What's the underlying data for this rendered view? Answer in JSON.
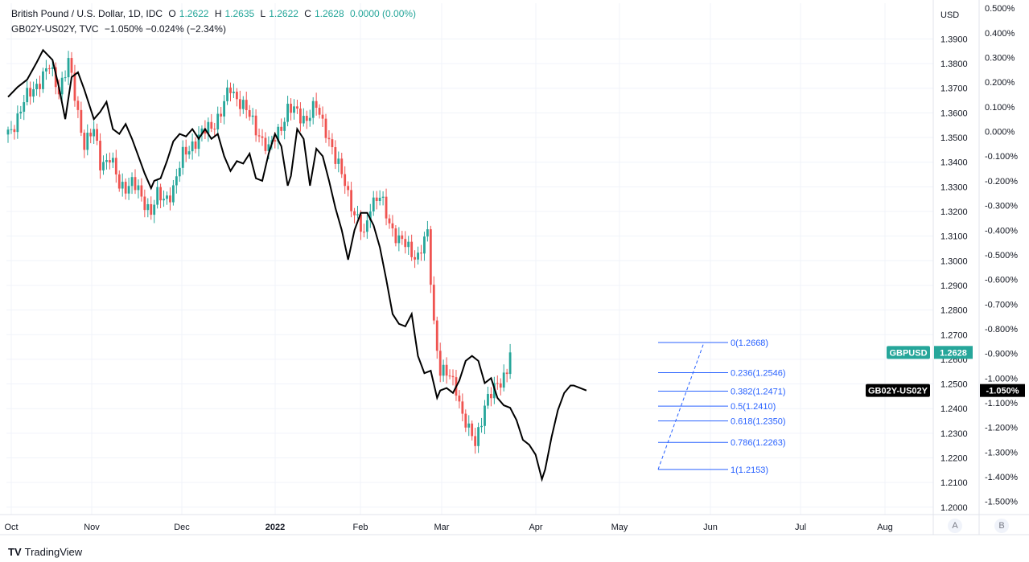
{
  "legend": {
    "symbol": "British Pound / U.S. Dollar, 1D, IDC",
    "o_label": "O",
    "o": "1.2622",
    "h_label": "H",
    "h": "1.2635",
    "l_label": "L",
    "l": "1.2622",
    "c_label": "C",
    "c": "1.2628",
    "change": "0.0000 (0.00%)",
    "overlay_symbol": "GB02Y-US02Y, TVC",
    "overlay_values": "−1.050%  −0.024% (−2.34%)"
  },
  "brand": {
    "logo": "TV",
    "name": "TradingView"
  },
  "buttons": {
    "a": "A",
    "b": "B"
  },
  "colors": {
    "up": "#26a69a",
    "down": "#ef5350",
    "overlay": "#000000",
    "fib": "#2962ff",
    "tag_gbp": "#26a69a",
    "tag_spread": "#000000"
  },
  "chart_data": {
    "type": "line",
    "title": "British Pound / U.S. Dollar, 1D, IDC",
    "xlabel": "",
    "ylabel": "",
    "x_tick_labels": [
      "Oct",
      "Nov",
      "Dec",
      "2022",
      "Feb",
      "Mar",
      "Apr",
      "May",
      "Jun",
      "Jul",
      "Aug"
    ],
    "right_axis_currency": "USD",
    "y_ticks_price": [
      "1.3900",
      "1.3800",
      "1.3700",
      "1.3600",
      "1.3500",
      "1.3400",
      "1.3300",
      "1.3200",
      "1.3100",
      "1.3000",
      "1.2900",
      "1.2800",
      "1.2700",
      "1.2600",
      "1.2500",
      "1.2400",
      "1.2300",
      "1.2200",
      "1.2100",
      "1.2000"
    ],
    "y_ticks_spread": [
      "0.500%",
      "0.400%",
      "0.300%",
      "0.200%",
      "0.100%",
      "0.000%",
      "-0.100%",
      "-0.200%",
      "-0.300%",
      "-0.400%",
      "-0.500%",
      "-0.600%",
      "-0.700%",
      "-0.800%",
      "-0.900%",
      "-1.000%",
      "-1.100%",
      "-1.200%",
      "-1.300%",
      "-1.400%",
      "-1.500%"
    ],
    "ylim_price": [
      1.197,
      1.4045
    ],
    "ylim_spread": [
      -1.553,
      0.52
    ],
    "grid": true,
    "series": [
      {
        "name": "GBPUSD",
        "kind": "close-path",
        "points": [
          [
            3,
            1.351
          ],
          [
            8,
            1.364
          ],
          [
            12,
            1.372
          ],
          [
            16,
            1.378
          ],
          [
            19,
            1.37
          ],
          [
            22,
            1.38
          ],
          [
            25,
            1.36
          ],
          [
            27,
            1.348
          ],
          [
            30,
            1.352
          ],
          [
            32,
            1.34
          ],
          [
            35,
            1.342
          ],
          [
            38,
            1.33
          ],
          [
            42,
            1.332
          ],
          [
            45,
            1.325
          ],
          [
            48,
            1.321
          ],
          [
            50,
            1.326
          ],
          [
            52,
            1.324
          ],
          [
            55,
            1.33
          ],
          [
            58,
            1.342
          ],
          [
            61,
            1.348
          ],
          [
            64,
            1.351
          ],
          [
            67,
            1.355
          ],
          [
            70,
            1.36
          ],
          [
            73,
            1.37
          ],
          [
            76,
            1.365
          ],
          [
            79,
            1.358
          ],
          [
            82,
            1.352
          ],
          [
            85,
            1.344
          ],
          [
            88,
            1.353
          ],
          [
            91,
            1.361
          ],
          [
            94,
            1.36
          ],
          [
            97,
            1.358
          ],
          [
            100,
            1.362
          ],
          [
            103,
            1.354
          ],
          [
            106,
            1.34
          ],
          [
            109,
            1.333
          ],
          [
            112,
            1.318
          ],
          [
            115,
            1.31
          ],
          [
            117,
            1.324
          ],
          [
            120,
            1.325
          ],
          [
            123,
            1.316
          ],
          [
            126,
            1.308
          ],
          [
            129,
            1.305
          ],
          [
            132,
            1.302
          ],
          [
            135,
            1.31
          ],
          [
            137,
            1.275
          ],
          [
            139,
            1.256
          ],
          [
            142,
            1.252
          ],
          [
            144,
            1.249
          ],
          [
            146,
            1.238
          ],
          [
            148,
            1.23
          ],
          [
            150,
            1.226
          ],
          [
            153,
            1.242
          ],
          [
            155,
            1.245
          ],
          [
            158,
            1.252
          ],
          [
            160,
            1.256
          ],
          [
            161,
            1.2628
          ]
        ]
      },
      {
        "name": "GB02Y-US02Y",
        "points": [
          [
            0,
            0.14
          ],
          [
            3,
            0.18
          ],
          [
            6,
            0.21
          ],
          [
            9,
            0.28
          ],
          [
            11,
            0.33
          ],
          [
            14,
            0.29
          ],
          [
            16,
            0.18
          ],
          [
            18,
            0.05
          ],
          [
            20,
            0.22
          ],
          [
            22,
            0.24
          ],
          [
            24,
            0.17
          ],
          [
            27,
            0.05
          ],
          [
            29,
            0.08
          ],
          [
            31,
            0.12
          ],
          [
            33,
            0.01
          ],
          [
            35,
            -0.01
          ],
          [
            37,
            0.03
          ],
          [
            39,
            -0.03
          ],
          [
            41,
            -0.1
          ],
          [
            43,
            -0.17
          ],
          [
            45,
            -0.23
          ],
          [
            46,
            -0.2
          ],
          [
            48,
            -0.19
          ],
          [
            50,
            -0.12
          ],
          [
            52,
            -0.04
          ],
          [
            54,
            -0.01
          ],
          [
            56,
            -0.02
          ],
          [
            58,
            0.01
          ],
          [
            60,
            -0.03
          ],
          [
            62,
            0.01
          ],
          [
            64,
            -0.03
          ],
          [
            66,
            -0.01
          ],
          [
            68,
            -0.1
          ],
          [
            70,
            -0.16
          ],
          [
            72,
            -0.12
          ],
          [
            74,
            -0.13
          ],
          [
            76,
            -0.09
          ],
          [
            78,
            -0.19
          ],
          [
            80,
            -0.2
          ],
          [
            82,
            -0.09
          ],
          [
            84,
            -0.01
          ],
          [
            86,
            -0.06
          ],
          [
            88,
            -0.22
          ],
          [
            89,
            -0.18
          ],
          [
            91,
            0.01
          ],
          [
            93,
            -0.03
          ],
          [
            95,
            -0.22
          ],
          [
            97,
            -0.07
          ],
          [
            99,
            -0.1
          ],
          [
            101,
            -0.2
          ],
          [
            103,
            -0.31
          ],
          [
            105,
            -0.4
          ],
          [
            107,
            -0.52
          ],
          [
            109,
            -0.4
          ],
          [
            111,
            -0.33
          ],
          [
            113,
            -0.33
          ],
          [
            115,
            -0.38
          ],
          [
            117,
            -0.47
          ],
          [
            119,
            -0.6
          ],
          [
            121,
            -0.74
          ],
          [
            123,
            -0.78
          ],
          [
            125,
            -0.79
          ],
          [
            127,
            -0.74
          ],
          [
            129,
            -0.91
          ],
          [
            131,
            -0.98
          ],
          [
            133,
            -0.97
          ],
          [
            135,
            -1.08
          ],
          [
            136,
            -1.05
          ],
          [
            138,
            -1.04
          ],
          [
            140,
            -1.06
          ],
          [
            142,
            -1.01
          ],
          [
            144,
            -0.93
          ],
          [
            146,
            -0.91
          ],
          [
            148,
            -0.93
          ],
          [
            150,
            -1.02
          ],
          [
            152,
            -1.0
          ],
          [
            154,
            -1.08
          ],
          [
            156,
            -1.11
          ],
          [
            158,
            -1.12
          ],
          [
            160,
            -1.17
          ],
          [
            162,
            -1.25
          ],
          [
            164,
            -1.27
          ],
          [
            166,
            -1.31
          ],
          [
            168,
            -1.41
          ],
          [
            169,
            -1.37
          ],
          [
            171,
            -1.24
          ],
          [
            173,
            -1.13
          ],
          [
            175,
            -1.06
          ],
          [
            177,
            -1.03
          ],
          [
            178,
            -1.03
          ],
          [
            180,
            -1.04
          ],
          [
            182,
            -1.05
          ]
        ]
      }
    ],
    "fibonacci": [
      {
        "label": "0(1.2668)",
        "value": 1.2668
      },
      {
        "label": "0.236(1.2546)",
        "value": 1.2546
      },
      {
        "label": "0.382(1.2471)",
        "value": 1.2471
      },
      {
        "label": "0.5(1.2410)",
        "value": 1.241
      },
      {
        "label": "0.618(1.2350)",
        "value": 1.235
      },
      {
        "label": "0.786(1.2263)",
        "value": 1.2263
      },
      {
        "label": "1(1.2153)",
        "value": 1.2153
      }
    ],
    "price_tags": [
      {
        "name": "GBPUSD",
        "value": "1.2628"
      },
      {
        "name": "GB02Y-US02Y",
        "value": "-1.050%"
      }
    ]
  }
}
